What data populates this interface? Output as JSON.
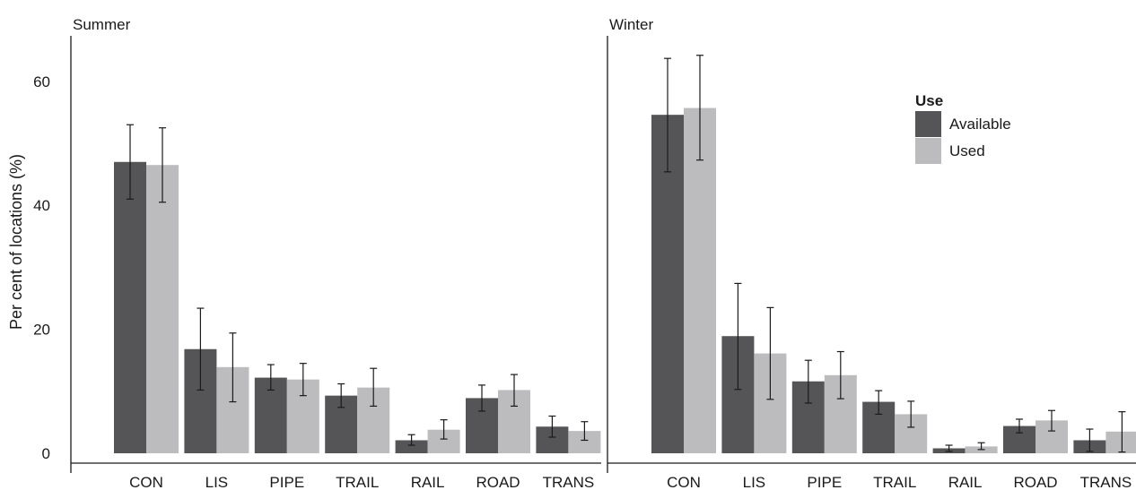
{
  "chart_data": {
    "type": "bar",
    "ylabel": "Per cent of locations (%)",
    "ylim": [
      0,
      67
    ],
    "yticks": [
      0,
      20,
      40,
      60
    ],
    "categories": [
      "CON",
      "LIS",
      "PIPE",
      "TRAIL",
      "RAIL",
      "ROAD",
      "TRANS"
    ],
    "legend": {
      "title": "Use",
      "position": "top-right",
      "entries": [
        "Available",
        "Used"
      ]
    },
    "colors": {
      "Available": "#555557",
      "Used": "#bcbcbf"
    },
    "panels": [
      {
        "title": "Summer",
        "series": [
          {
            "name": "Available",
            "values": [
              47.0,
              16.8,
              12.2,
              9.3,
              2.1,
              8.9,
              4.3
            ],
            "err_low": [
              41.0,
              10.2,
              10.2,
              7.4,
              1.3,
              6.8,
              2.6
            ],
            "err_high": [
              53.0,
              23.4,
              14.3,
              11.2,
              3.0,
              11.0,
              6.0
            ]
          },
          {
            "name": "Used",
            "values": [
              46.5,
              13.9,
              11.9,
              10.6,
              3.8,
              10.2,
              3.6
            ],
            "err_low": [
              40.5,
              8.3,
              9.3,
              7.6,
              2.3,
              7.6,
              2.1
            ],
            "err_high": [
              52.5,
              19.4,
              14.5,
              13.7,
              5.4,
              12.7,
              5.1
            ]
          }
        ]
      },
      {
        "title": "Winter",
        "series": [
          {
            "name": "Available",
            "values": [
              54.6,
              18.9,
              11.6,
              8.3,
              0.8,
              4.4,
              2.1
            ],
            "err_low": [
              45.4,
              10.3,
              8.1,
              6.3,
              0.3,
              3.3,
              0.3
            ],
            "err_high": [
              63.7,
              27.4,
              15.0,
              10.1,
              1.3,
              5.5,
              3.9
            ]
          },
          {
            "name": "Used",
            "values": [
              55.7,
              16.1,
              12.6,
              6.3,
              1.1,
              5.3,
              3.5
            ],
            "err_low": [
              47.3,
              8.7,
              8.8,
              4.2,
              0.6,
              3.6,
              0.2
            ],
            "err_high": [
              64.2,
              23.5,
              16.4,
              8.4,
              1.7,
              6.9,
              6.7
            ]
          }
        ]
      }
    ]
  }
}
